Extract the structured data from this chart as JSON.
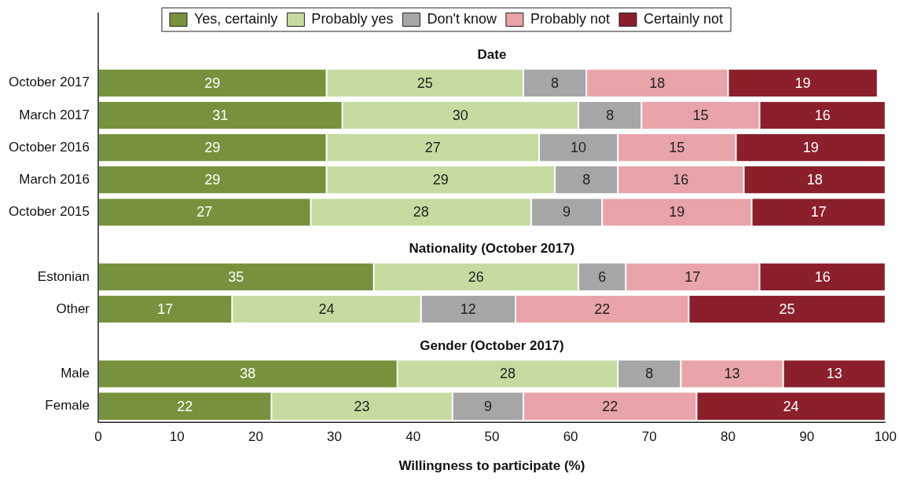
{
  "chart_data": {
    "type": "bar",
    "orientation": "horizontal",
    "stacked": true,
    "categories": [
      null,
      "October 2017",
      "March 2017",
      "October 2016",
      "March 2016",
      "October 2015",
      null,
      "Estonian",
      "Other",
      null,
      "Male",
      "Female"
    ],
    "series": [
      {
        "name": "Yes, certainly",
        "color": "#76923c",
        "values": [
          null,
          29,
          31,
          29,
          29,
          27,
          null,
          35,
          17,
          null,
          38,
          22
        ]
      },
      {
        "name": "Probably yes",
        "color": "#c4dca0",
        "values": [
          null,
          25,
          30,
          27,
          29,
          28,
          null,
          26,
          24,
          null,
          28,
          23
        ]
      },
      {
        "name": "Don't know",
        "color": "#a6a6a6",
        "values": [
          null,
          8,
          8,
          10,
          8,
          9,
          null,
          6,
          12,
          null,
          8,
          9
        ]
      },
      {
        "name": "Probably not",
        "color": "#e8a4a8",
        "values": [
          null,
          18,
          15,
          15,
          16,
          19,
          null,
          17,
          22,
          null,
          13,
          22
        ]
      },
      {
        "name": "Certainly not",
        "color": "#8b1f2b",
        "values": [
          null,
          19,
          16,
          19,
          18,
          17,
          null,
          16,
          25,
          null,
          13,
          24
        ]
      }
    ],
    "xlim": [
      0,
      100
    ],
    "xticks": [
      0,
      10,
      20,
      30,
      40,
      50,
      60,
      70,
      80,
      90,
      100
    ],
    "xlabel": "Willingness to participate (%)",
    "annotations": [
      "Date",
      "Nationality (October 2017)",
      "Gender (October 2017)"
    ],
    "data_labels": true,
    "legend": "top",
    "grid": false
  }
}
